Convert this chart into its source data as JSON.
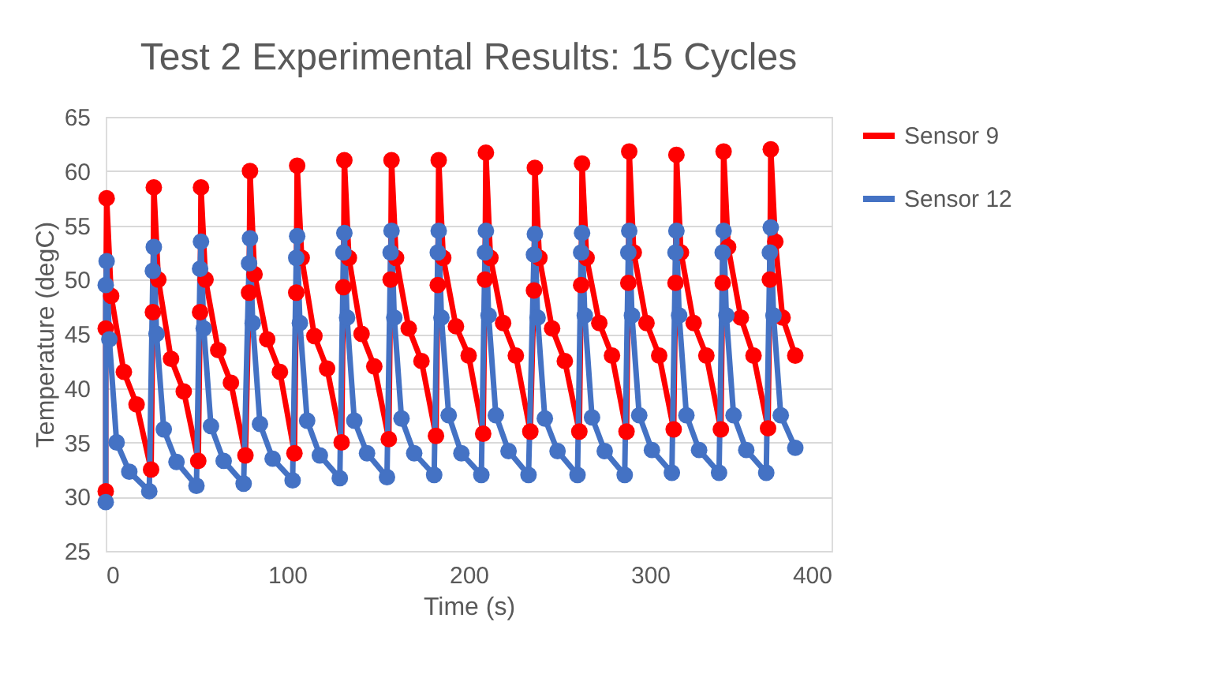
{
  "chart_data": {
    "type": "line",
    "title": "Test 2 Experimental Results:  15 Cycles",
    "xlabel": "Time (s)",
    "ylabel": "Temperature (degC)",
    "xlim": [
      0,
      400
    ],
    "xticks": [
      0,
      100,
      200,
      300,
      400
    ],
    "ylim": [
      25,
      65
    ],
    "yticks": [
      25,
      30,
      35,
      40,
      45,
      50,
      55,
      60,
      65
    ],
    "grid": "y",
    "legend": "right",
    "marker": "circle",
    "line_style": "solid",
    "series": [
      {
        "name": "Sensor 9",
        "color": "#ff0000",
        "x": [
          0,
          0,
          0.5,
          3,
          10,
          17,
          25,
          26,
          26.5,
          29,
          36,
          43,
          51,
          52,
          52.5,
          55,
          62,
          69,
          77,
          79,
          79.5,
          82,
          89,
          96,
          104,
          105,
          105.5,
          108,
          115,
          122,
          130,
          131,
          131.5,
          134,
          141,
          148,
          156,
          157,
          157.5,
          160,
          167,
          174,
          182,
          183,
          183.5,
          186,
          193,
          200,
          208,
          209,
          209.5,
          212,
          219,
          226,
          234,
          236,
          236.5,
          239,
          246,
          253,
          261,
          262,
          262.5,
          265,
          272,
          279,
          287,
          288,
          288.5,
          291,
          298,
          305,
          313,
          314,
          314.5,
          317,
          324,
          331,
          339,
          340,
          340.5,
          343,
          350,
          357,
          365,
          366,
          366.5,
          369,
          373,
          380
        ],
        "values": [
          30.5,
          45.5,
          57.5,
          48.5,
          41.5,
          38.5,
          32.5,
          47,
          58.5,
          50,
          42.7,
          39.7,
          33.3,
          47,
          58.5,
          50,
          43.5,
          40.5,
          33.8,
          48.8,
          60,
          50.5,
          44.5,
          41.5,
          34,
          48.8,
          60.5,
          52,
          44.8,
          41.8,
          35,
          49.3,
          61,
          52,
          45,
          42,
          35.3,
          50,
          61,
          52,
          45.5,
          42.5,
          35.6,
          49.5,
          61,
          52,
          45.7,
          43,
          35.8,
          50,
          61.7,
          52,
          46,
          43,
          36,
          49,
          60.3,
          52,
          45.5,
          42.5,
          36,
          49.5,
          60.7,
          52,
          46,
          43,
          36,
          49.7,
          61.8,
          52.5,
          46,
          43,
          36.2,
          49.7,
          61.5,
          52.5,
          46,
          43,
          36.2,
          49.7,
          61.8,
          53,
          46.5,
          43,
          36.3,
          50,
          62,
          53.5,
          46.5,
          43
        ]
      },
      {
        "name": "Sensor 12",
        "color": "#4472c4",
        "x": [
          0,
          0,
          0.5,
          2,
          6,
          13,
          24,
          26,
          26.5,
          28,
          32,
          39,
          50,
          52,
          52.5,
          54,
          58,
          65,
          76,
          79,
          79.5,
          81,
          85,
          92,
          103,
          105,
          105.5,
          107,
          111,
          118,
          129,
          131,
          131.5,
          133,
          137,
          144,
          155,
          157,
          157.5,
          159,
          163,
          170,
          181,
          183,
          183.5,
          185,
          189,
          196,
          207,
          209,
          209.5,
          211,
          215,
          222,
          233,
          236,
          236.5,
          238,
          242,
          249,
          260,
          262,
          262.5,
          264,
          268,
          275,
          286,
          288,
          288.5,
          290,
          294,
          301,
          312,
          314,
          314.5,
          316,
          320,
          327,
          338,
          340,
          340.5,
          342,
          346,
          353,
          364,
          366,
          366.5,
          368,
          372,
          380
        ],
        "values": [
          29.5,
          49.5,
          51.7,
          44.5,
          35,
          32.3,
          30.5,
          50.8,
          53,
          45,
          36.2,
          33.2,
          31,
          51,
          53.5,
          45.5,
          36.5,
          33.3,
          31.2,
          51.5,
          53.8,
          46,
          36.7,
          33.5,
          31.5,
          52,
          54,
          46,
          37,
          33.8,
          31.7,
          52.5,
          54.3,
          46.5,
          37,
          34,
          31.8,
          52.5,
          54.5,
          46.5,
          37.2,
          34,
          32,
          52.5,
          54.5,
          46.5,
          37.5,
          34,
          32,
          52.5,
          54.5,
          46.7,
          37.5,
          34.2,
          32,
          52.3,
          54.2,
          46.5,
          37.2,
          34.2,
          32,
          52.5,
          54.3,
          46.7,
          37.3,
          34.2,
          32,
          52.5,
          54.5,
          46.7,
          37.5,
          34.3,
          32.2,
          52.5,
          54.5,
          46.7,
          37.5,
          34.3,
          32.2,
          52.5,
          54.5,
          46.7,
          37.5,
          34.3,
          32.2,
          52.5,
          54.8,
          46.7,
          37.5,
          34.5
        ]
      }
    ]
  }
}
